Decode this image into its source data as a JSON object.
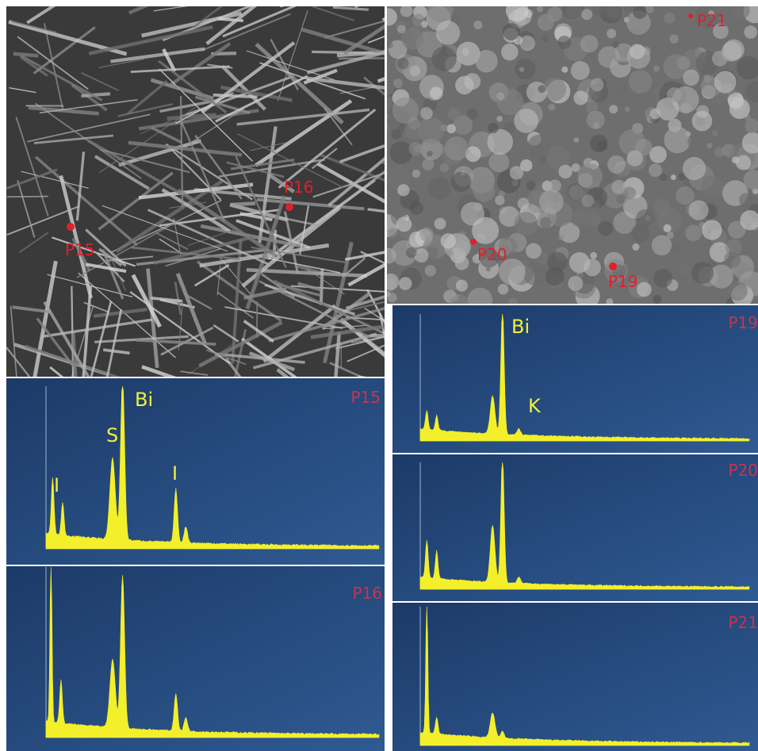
{
  "sem_images": [
    {
      "points": [
        {
          "label": "P15"
        },
        {
          "label": "P16"
        }
      ]
    },
    {
      "points": [
        {
          "label": "P21"
        },
        {
          "label": "P20"
        },
        {
          "label": "P19"
        }
      ]
    }
  ],
  "spectra": [
    {
      "label": "P15",
      "peaks": [
        "Bi",
        "S",
        "I",
        "I"
      ]
    },
    {
      "label": "P16"
    },
    {
      "label": "P19",
      "peaks": [
        "Bi",
        "K"
      ]
    },
    {
      "label": "P20"
    },
    {
      "label": "P21"
    }
  ]
}
